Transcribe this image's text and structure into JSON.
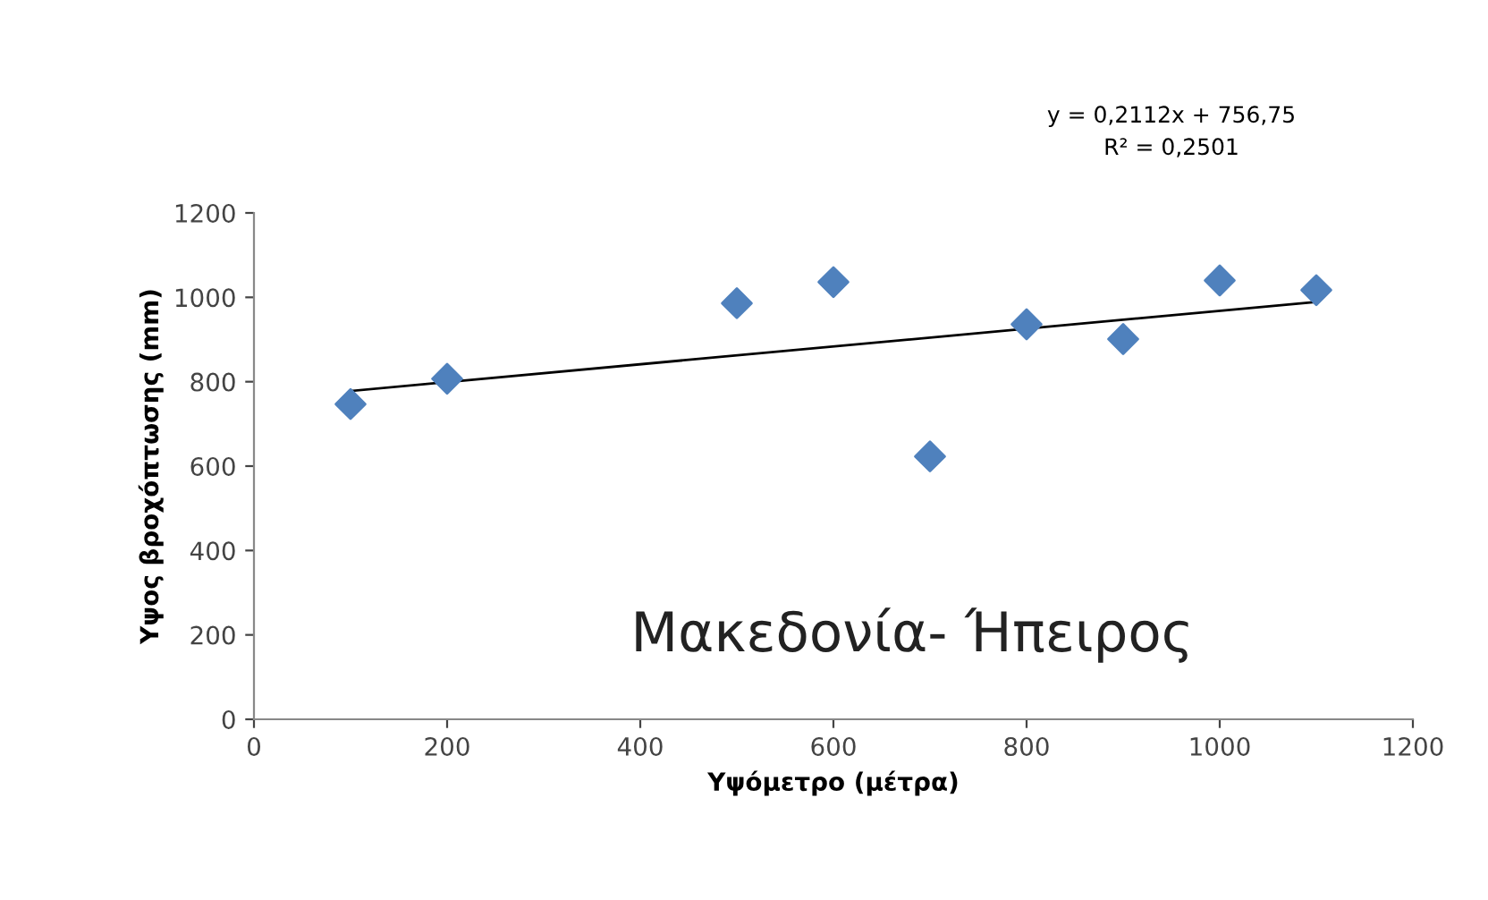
{
  "chart_data": {
    "type": "scatter",
    "xlabel": "Υψόμετρο (μέτρα)",
    "ylabel": "Υψος βροχόπτωσης (mm)",
    "xlim": [
      0,
      1200
    ],
    "xticks": [
      0,
      200,
      400,
      600,
      800,
      1000,
      1200
    ],
    "ylim": [
      0,
      1200
    ],
    "yticks": [
      0,
      200,
      400,
      600,
      800,
      1000,
      1200
    ],
    "marker": "diamond",
    "grid": false,
    "series": [
      {
        "color": "#4f81bd",
        "x": [
          100,
          200,
          500,
          600,
          700,
          800,
          900,
          1000,
          1100
        ],
        "values": [
          747,
          807,
          986,
          1036,
          623,
          936,
          901,
          1040,
          1017
        ]
      },
      {
        "type": "line",
        "color": "#000000",
        "marker": "none",
        "line_style": "solid",
        "x": [
          100,
          1100
        ],
        "values": [
          778,
          989
        ]
      }
    ],
    "annotations": [
      "y = 0,2112x + 756,75",
      "R² = 0,2501",
      "Μακεδονία- Ήπειρος"
    ]
  }
}
